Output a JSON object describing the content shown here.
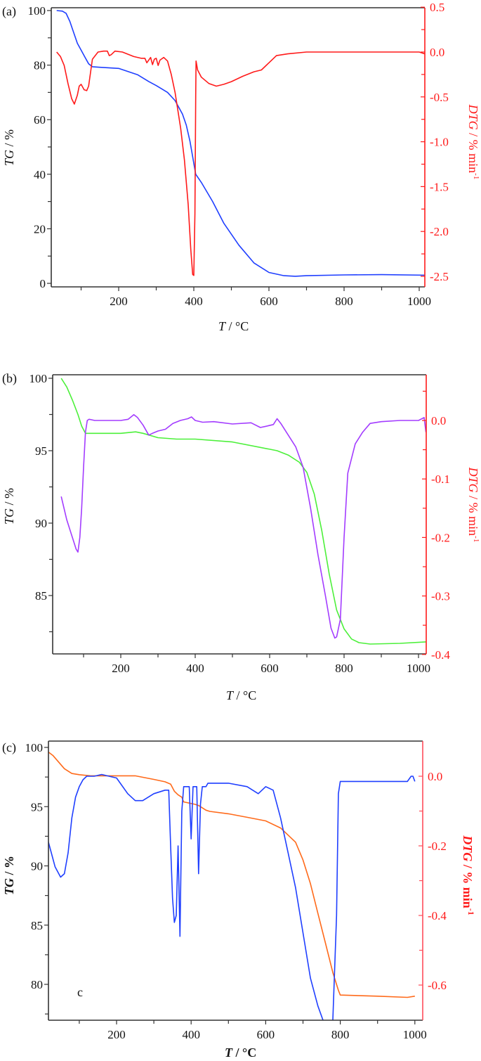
{
  "chart_data": [
    {
      "id": "a",
      "type": "line",
      "panel_label": "(a)",
      "xlabel": "T / °C",
      "ylabel": "TG / %",
      "y2label": "DTG / % min-1",
      "xlim": [
        25,
        1020
      ],
      "ylim": [
        0,
        100
      ],
      "y2lim": [
        -2.5,
        0.5
      ],
      "xticks": [
        200,
        400,
        600,
        800,
        1000
      ],
      "yticks": [
        0,
        20,
        40,
        60,
        80,
        100
      ],
      "y2ticks": [
        "0.5",
        "0.0",
        "-0.5",
        "-1.0",
        "-1.5",
        "-2.0",
        "-2.5"
      ],
      "grid": false,
      "legend": "none",
      "series": [
        {
          "name": "TG",
          "axis": "left",
          "color": "#1f3fff",
          "x": [
            35,
            50,
            60,
            70,
            80,
            90,
            100,
            110,
            120,
            130,
            150,
            200,
            250,
            280,
            300,
            330,
            350,
            370,
            380,
            390,
            400,
            405,
            420,
            450,
            480,
            520,
            560,
            600,
            640,
            670,
            700,
            800,
            900,
            1020
          ],
          "y": [
            100,
            99.8,
            99,
            96,
            92,
            88,
            85.5,
            83,
            80.5,
            79.4,
            79.2,
            78.8,
            76.5,
            74,
            72.5,
            70,
            67,
            62,
            58,
            52,
            44,
            40,
            37,
            30,
            22,
            14,
            7.5,
            4,
            2.8,
            2.6,
            2.8,
            3.1,
            3.2,
            3.0
          ]
        },
        {
          "name": "DTG",
          "axis": "right",
          "color": "#ff1a1a",
          "x": [
            35,
            45,
            55,
            65,
            75,
            82,
            90,
            95,
            100,
            108,
            115,
            120,
            130,
            145,
            160,
            170,
            175,
            180,
            190,
            210,
            240,
            260,
            270,
            275,
            285,
            290,
            295,
            300,
            305,
            310,
            320,
            330,
            340,
            350,
            365,
            375,
            385,
            392,
            397,
            400,
            403,
            405,
            406,
            410,
            420,
            440,
            460,
            480,
            500,
            530,
            560,
            580,
            600,
            620,
            650,
            700,
            800,
            900,
            1000,
            1015,
            1020
          ],
          "y": [
            0.0,
            -0.05,
            -0.15,
            -0.35,
            -0.52,
            -0.58,
            -0.48,
            -0.38,
            -0.36,
            -0.42,
            -0.43,
            -0.38,
            -0.08,
            0.0,
            0.01,
            0.01,
            -0.04,
            -0.03,
            0.01,
            0.0,
            -0.05,
            -0.07,
            -0.07,
            -0.12,
            -0.06,
            -0.14,
            -0.08,
            -0.07,
            -0.15,
            -0.09,
            -0.06,
            -0.1,
            -0.25,
            -0.45,
            -0.85,
            -1.2,
            -1.7,
            -2.2,
            -2.48,
            -2.49,
            -1.8,
            -0.5,
            -0.1,
            -0.2,
            -0.28,
            -0.35,
            -0.38,
            -0.36,
            -0.33,
            -0.27,
            -0.22,
            -0.2,
            -0.12,
            -0.04,
            -0.02,
            0.0,
            0.0,
            0.0,
            0.0,
            -0.02,
            -0.12
          ]
        }
      ]
    },
    {
      "id": "b",
      "type": "line",
      "panel_label": "(b)",
      "xlabel": "T / °C",
      "ylabel": "TG / %",
      "y2label": "DTG / % min-1",
      "xlim": [
        25,
        1020
      ],
      "ylim": [
        81.1,
        100.3
      ],
      "y2lim": [
        -0.4,
        0.08
      ],
      "xticks": [
        200,
        400,
        600,
        800,
        1000
      ],
      "yticks": [
        85,
        90,
        95,
        100
      ],
      "y2ticks": [
        "0.0",
        "-0.1",
        "-0.2",
        "-0.3",
        "-0.4"
      ],
      "grid": false,
      "legend": "none",
      "series": [
        {
          "name": "TG",
          "axis": "left",
          "color": "#4cf03a",
          "x": [
            40,
            55,
            70,
            85,
            95,
            105,
            120,
            200,
            240,
            260,
            300,
            350,
            400,
            500,
            600,
            620,
            650,
            680,
            700,
            720,
            740,
            760,
            780,
            800,
            820,
            840,
            870,
            950,
            1020
          ],
          "y": [
            100,
            99.4,
            98.5,
            97.5,
            96.7,
            96.2,
            96.2,
            96.2,
            96.3,
            96.2,
            95.9,
            95.8,
            95.8,
            95.6,
            95.1,
            95.0,
            94.7,
            94.2,
            93.5,
            92.0,
            89.5,
            86.5,
            84.0,
            82.7,
            82.0,
            81.75,
            81.65,
            81.7,
            81.8
          ]
        },
        {
          "name": "DTG",
          "axis": "right",
          "color": "#a33cff",
          "x": [
            40,
            55,
            70,
            80,
            85,
            90,
            95,
            100,
            105,
            110,
            115,
            130,
            200,
            220,
            235,
            245,
            260,
            275,
            285,
            300,
            320,
            340,
            360,
            380,
            390,
            400,
            420,
            450,
            500,
            550,
            575,
            590,
            610,
            620,
            630,
            650,
            670,
            690,
            710,
            730,
            750,
            765,
            775,
            780,
            790,
            800,
            810,
            830,
            850,
            870,
            900,
            950,
            1000,
            1015,
            1020
          ],
          "y": [
            -0.13,
            -0.17,
            -0.2,
            -0.22,
            -0.225,
            -0.2,
            -0.15,
            -0.08,
            -0.02,
            0.0,
            0.002,
            0.0,
            0.0,
            0.002,
            0.01,
            0.005,
            -0.008,
            -0.025,
            -0.022,
            -0.018,
            -0.015,
            -0.005,
            0.0,
            0.003,
            0.006,
            0.0,
            -0.003,
            -0.002,
            -0.006,
            -0.004,
            -0.012,
            -0.01,
            -0.007,
            0.003,
            -0.005,
            -0.025,
            -0.045,
            -0.08,
            -0.15,
            -0.23,
            -0.3,
            -0.355,
            -0.372,
            -0.37,
            -0.34,
            -0.2,
            -0.09,
            -0.04,
            -0.02,
            -0.005,
            -0.002,
            0.0,
            0.0,
            0.005,
            -0.02
          ]
        }
      ]
    },
    {
      "id": "c",
      "type": "line",
      "panel_label": "(c)",
      "annotation": "c",
      "xlabel": "T / °C",
      "ylabel": "TG / %",
      "y2label": "DTG / % min-1",
      "xlim": [
        5,
        1020
      ],
      "ylim": [
        77.0,
        100.5
      ],
      "y2lim": [
        -0.7,
        0.1
      ],
      "xticks": [
        200,
        400,
        600,
        800,
        1000
      ],
      "yticks": [
        80,
        85,
        90,
        95,
        100
      ],
      "y2ticks": [
        "0.0",
        "-0.2",
        "-0.4",
        "-0.6"
      ],
      "grid": false,
      "legend": "none",
      "series": [
        {
          "name": "TG",
          "axis": "left",
          "color": "#ff6a1a",
          "x": [
            5,
            30,
            60,
            80,
            100,
            130,
            200,
            250,
            300,
            330,
            345,
            355,
            365,
            375,
            380,
            410,
            420,
            430,
            440,
            450,
            500,
            550,
            600,
            640,
            680,
            700,
            720,
            740,
            760,
            780,
            795,
            800,
            900,
            980,
            1000
          ],
          "y": [
            99.9,
            99.3,
            98.2,
            97.8,
            97.7,
            97.6,
            97.6,
            97.6,
            97.3,
            97.1,
            96.9,
            96.3,
            96.0,
            95.8,
            95.4,
            95.2,
            95.1,
            94.9,
            94.7,
            94.6,
            94.4,
            94.1,
            93.8,
            93.2,
            92.0,
            90.5,
            88.5,
            86.0,
            83.5,
            81.0,
            79.5,
            79.1,
            79.0,
            78.9,
            79.0
          ]
        },
        {
          "name": "DTG",
          "axis": "right",
          "color": "#1f3fff",
          "x": [
            5,
            20,
            35,
            50,
            60,
            70,
            80,
            90,
            100,
            110,
            120,
            140,
            160,
            200,
            230,
            250,
            270,
            300,
            330,
            340,
            345,
            350,
            355,
            360,
            365,
            370,
            375,
            380,
            390,
            395,
            400,
            405,
            410,
            415,
            420,
            425,
            430,
            435,
            440,
            445,
            500,
            550,
            580,
            600,
            620,
            640,
            660,
            680,
            700,
            720,
            740,
            760,
            770,
            780,
            790,
            795,
            800,
            810,
            900,
            970,
            980,
            990,
            995,
            1000
          ],
          "y": [
            -0.14,
            -0.2,
            -0.26,
            -0.29,
            -0.28,
            -0.22,
            -0.12,
            -0.06,
            -0.03,
            -0.01,
            0.0,
            0.0,
            0.005,
            -0.005,
            -0.05,
            -0.07,
            -0.07,
            -0.05,
            -0.04,
            -0.04,
            -0.2,
            -0.35,
            -0.42,
            -0.4,
            -0.2,
            -0.46,
            -0.1,
            -0.03,
            -0.03,
            -0.03,
            -0.18,
            -0.03,
            -0.03,
            -0.03,
            -0.28,
            -0.08,
            -0.03,
            -0.03,
            -0.03,
            -0.02,
            -0.02,
            -0.03,
            -0.05,
            -0.03,
            -0.04,
            -0.12,
            -0.22,
            -0.32,
            -0.45,
            -0.58,
            -0.66,
            -0.72,
            -0.73,
            -0.7,
            -0.4,
            -0.05,
            -0.015,
            -0.015,
            -0.015,
            -0.015,
            -0.015,
            -0.0,
            -0.0,
            -0.015
          ]
        }
      ]
    }
  ],
  "figure": {
    "panels": [
      {
        "label": "(a)",
        "xlabel_italic": "T",
        "xlabel_rest": " / °C",
        "ylabel_italic": "TG",
        "ylabel_rest": " / %",
        "y2label_italic": "DTG",
        "y2label_rest": " / % min",
        "y2label_sup": "-1"
      },
      {
        "label": "(b)",
        "xlabel_italic": "T",
        "xlabel_rest": " / °C",
        "ylabel_italic": "TG",
        "ylabel_rest": " / %",
        "y2label_italic": "DTG",
        "y2label_rest": " / % min",
        "y2label_sup": "-1"
      },
      {
        "label": "(c)",
        "annotation": "c",
        "xlabel_italic": "T",
        "xlabel_rest": " / °C",
        "ylabel_italic": "TG",
        "ylabel_rest": " / %",
        "y2label_italic": "DTG",
        "y2label_rest": " / % min",
        "y2label_sup": "-1"
      }
    ]
  }
}
